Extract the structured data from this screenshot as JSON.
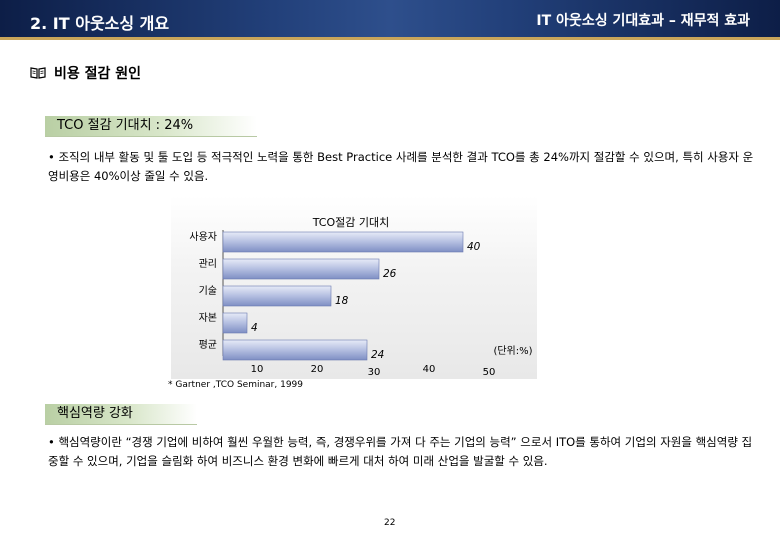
{
  "header": {
    "left_title": "2. IT 아웃소싱 개요",
    "right_title": "IT 아웃소싱 기대효과 – 재무적 효과"
  },
  "section": {
    "icon": "book-icon",
    "title": "비용 절감 원인"
  },
  "tco": {
    "tag": "TCO 절감 기대치 : 24%",
    "text": "• 조직의 내부 활동 및 툴 도입 등 적극적인 노력을 통한 Best Practice 사례를 분석한 결과 TCO를 총 24%까지 절감할 수 있으며, 특히 사용자 운영비용은 40%이상 줄일 수 있음."
  },
  "chart_data": {
    "type": "bar",
    "orientation": "horizontal",
    "title": "TCO절감 기대치",
    "categories": [
      "사용자",
      "관리",
      "기술",
      "자본",
      "평균"
    ],
    "values": [
      40,
      26,
      18,
      4,
      24
    ],
    "x_ticks": [
      "10",
      "20",
      "30",
      "40",
      "50"
    ],
    "unit_label": "(단위:%)",
    "xlim": [
      0,
      50
    ]
  },
  "source": "* Gartner ,TCO Seminar, 1999",
  "core": {
    "tag": "핵심역량 강화",
    "text": "• 핵심역량이란 “경쟁 기업에 비하여 훨씬 우월한 능력, 즉, 경쟁우위를 가져 다 주는 기업의 능력” 으로서 ITO를 통하여 기업의 자원을 핵심역량 집중할 수 있으며, 기업을 슬림화 하여 비즈니스 환경 변화에 빠르게 대처 하여 미래 산업을 발굴할 수 있음."
  },
  "page_number": "22"
}
